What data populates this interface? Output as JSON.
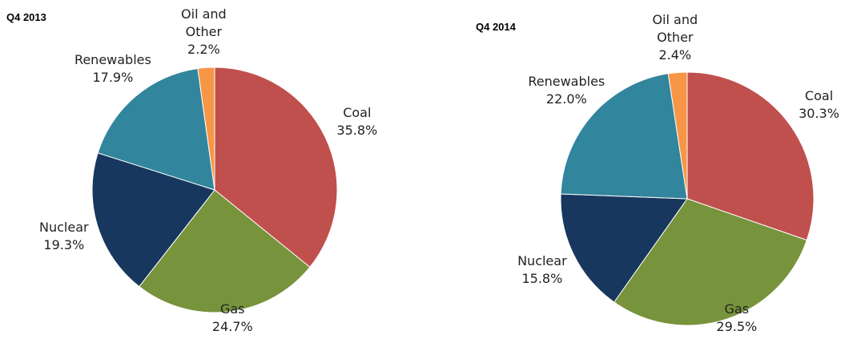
{
  "chart_data": [
    {
      "type": "pie",
      "title": "Q4 2013",
      "categories": [
        "Coal",
        "Gas",
        "Nuclear",
        "Renewables",
        "Oil and Other"
      ],
      "values": [
        35.8,
        24.7,
        19.3,
        17.9,
        2.2
      ],
      "value_labels": [
        "35.8%",
        "24.7%",
        "19.3%",
        "17.9%",
        "2.2%"
      ],
      "colors": [
        "#c0504d",
        "#77933c",
        "#17375e",
        "#31859c",
        "#f79646"
      ]
    },
    {
      "type": "pie",
      "title": "Q4 2014",
      "categories": [
        "Coal",
        "Gas",
        "Nuclear",
        "Renewables",
        "Oil and Other"
      ],
      "values": [
        30.3,
        29.5,
        15.8,
        22.0,
        2.4
      ],
      "value_labels": [
        "30.3%",
        "29.5%",
        "15.8%",
        "22.0%",
        "2.4%"
      ],
      "colors": [
        "#c0504d",
        "#77933c",
        "#17375e",
        "#31859c",
        "#f79646"
      ]
    }
  ]
}
